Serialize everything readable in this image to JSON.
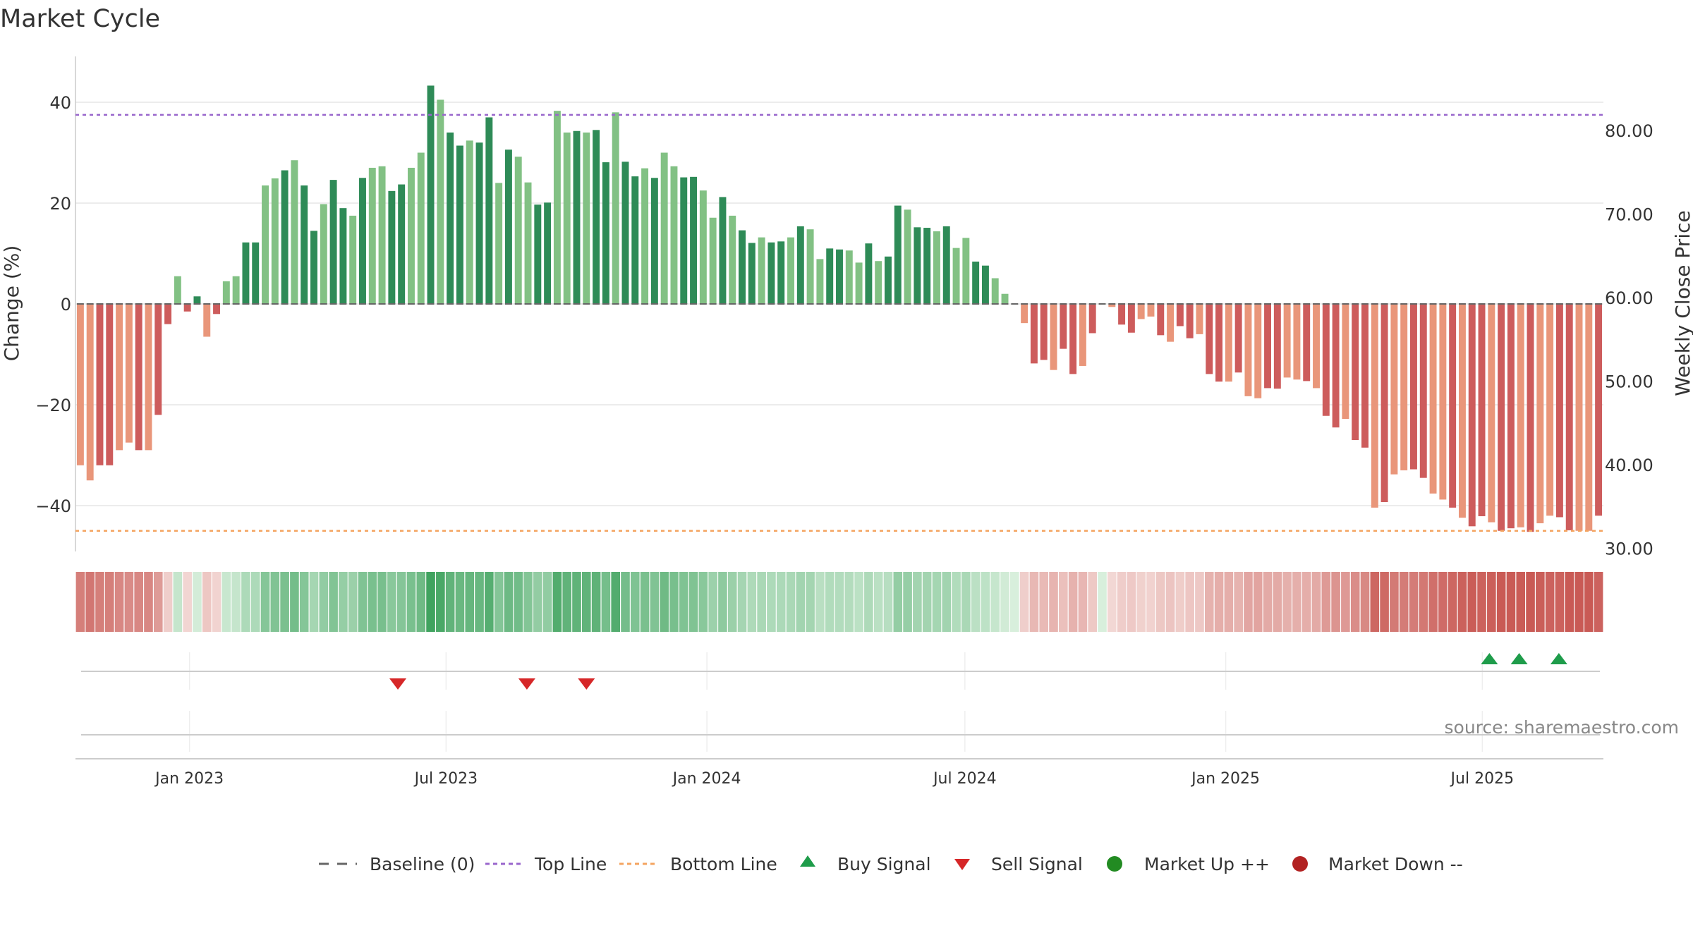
{
  "chart_data": {
    "type": "bar",
    "title": "Market Cycle",
    "ylabel": "Change (%)",
    "y2label": "Weekly Close Price",
    "ylim": [
      -49,
      49
    ],
    "y2lim": [
      29.5,
      87.4
    ],
    "yticks": [
      "40",
      "20",
      "0",
      "−20",
      "−40"
    ],
    "yticks_values": [
      40,
      20,
      0,
      -20,
      -40
    ],
    "y2ticks": [
      "80.00",
      "70.00",
      "60.00",
      "50.00",
      "40.00",
      "30.00"
    ],
    "y2ticks_values": [
      80,
      70,
      60,
      50,
      40,
      30
    ],
    "xlabels": [
      "Jan 2023",
      "Jul 2023",
      "Jan 2024",
      "Jul 2024",
      "Jan 2025",
      "Jul 2025"
    ],
    "xlabel_dates": [
      "2023-01-01",
      "2023-07-01",
      "2024-01-01",
      "2024-07-01",
      "2025-01-01",
      "2025-07-01"
    ],
    "start_date": "2022-10-16",
    "end_date": "2025-09-21",
    "top_line": 37.5,
    "bottom_line": -45,
    "values": [
      -32,
      -35,
      -32,
      -32,
      -29,
      -27.5,
      -29,
      -29,
      -22,
      -4,
      5.5,
      -1.5,
      1.5,
      -6.5,
      -2,
      4.5,
      5.5,
      12.2,
      12.2,
      23.5,
      24.9,
      26.5,
      28.5,
      23.5,
      14.5,
      19.8,
      24.6,
      19,
      17.5,
      25,
      27,
      27.3,
      22.4,
      23.7,
      27,
      30,
      43.3,
      40.5,
      34,
      31.4,
      32.4,
      32.0,
      37,
      24,
      30.6,
      29.2,
      24.1,
      19.7,
      20.1,
      38.3,
      34,
      34.3,
      34,
      34.5,
      28.1,
      38,
      28.2,
      25.3,
      26.9,
      25,
      30,
      27.3,
      25.1,
      25.2,
      22.5,
      17.1,
      21.2,
      17.5,
      14.6,
      12.1,
      13.2,
      12.2,
      12.4,
      13.2,
      15.4,
      14.8,
      8.9,
      11,
      10.8,
      10.6,
      8.2,
      12,
      8.5,
      9.4,
      19.5,
      18.7,
      15.2,
      15.1,
      14.4,
      15.4,
      11.1,
      13.1,
      8.4,
      7.6,
      5.1,
      2,
      0,
      -3.8,
      -11.8,
      -11.1,
      -13.1,
      -8.9,
      -13.9,
      -12.3,
      -5.8,
      0,
      -0.6,
      -4.1,
      -5.7,
      -3,
      -2.5,
      -6.2,
      -7.5,
      -4.4,
      -6.8,
      -6,
      -13.9,
      -15.4,
      -15.4,
      -13.6,
      -18.3,
      -18.7,
      -16.7,
      -16.8,
      -14.6,
      -15,
      -15.3,
      -16.7,
      -22.2,
      -24.5,
      -22.8,
      -27,
      -28.5,
      -40.4,
      -39.3,
      -33.8,
      -33,
      -32.8,
      -34.5,
      -37.6,
      -38.8,
      -40.4,
      -42.4,
      -44.1,
      -42.1,
      -43.3,
      -45,
      -44.5,
      -44.3,
      -45.2,
      -43.5,
      -42,
      -42.3,
      -44.9,
      -45,
      -45,
      -42
    ]
  },
  "legend": {
    "baseline": "Baseline (0)",
    "top": "Top Line",
    "bottom": "Bottom Line",
    "buy": "Buy Signal",
    "sell": "Sell Signal",
    "up": "Market Up ++",
    "down": "Market Down --"
  },
  "signals": {
    "buy_dates": [
      "2025-07-06",
      "2025-07-27",
      "2025-08-24"
    ],
    "sell_dates": [
      "2023-05-28",
      "2023-08-27",
      "2023-10-08"
    ]
  },
  "source": "source: sharemaestro.com",
  "colors": {
    "up_dark": "#2e8b57",
    "up_light": "#82c184",
    "down_dark": "#cd5c5c",
    "down_light": "#e9967a",
    "top_line": "#9966cc",
    "bottom_line": "#f4a460",
    "buy": "#1e9c4a",
    "sell": "#d62728",
    "market_up": "#228b22",
    "market_down": "#b22222",
    "baseline": "#666666"
  }
}
